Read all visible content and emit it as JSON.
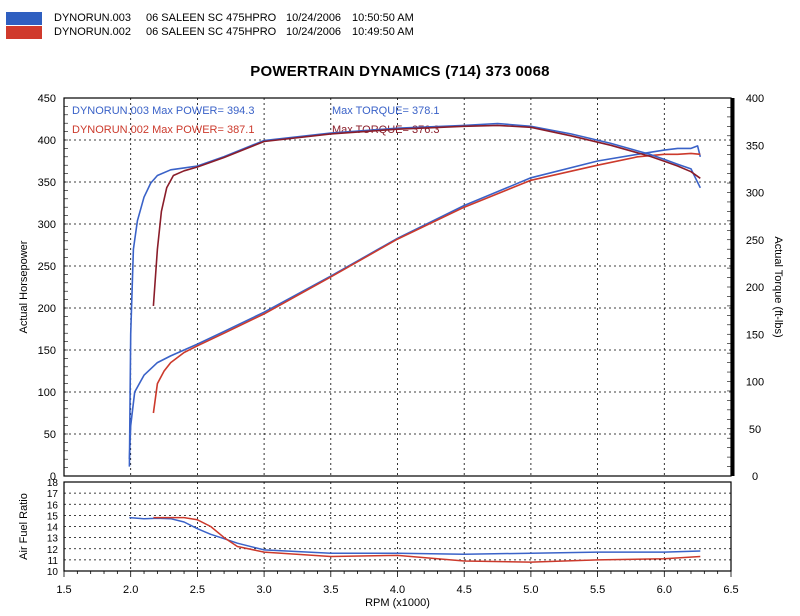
{
  "header": {
    "runs": [
      {
        "run": "DYNORUN.003",
        "vehicle": "06 SALEEN SC 475HPRO",
        "date": "10/24/2006",
        "time": "10:50:50 AM",
        "color": "#2f5fc0"
      },
      {
        "run": "DYNORUN.002",
        "vehicle": "06 SALEEN SC 475HPRO",
        "date": "10/24/2006",
        "time": "10:49:50 AM",
        "color": "#d03a2c"
      }
    ]
  },
  "colors": {
    "run003": "#3a62c8",
    "run002": "#cc3a2c",
    "run002_torque": "#8a1d2a"
  },
  "chart_data": [
    {
      "type": "line",
      "title": "POWERTRAIN DYNAMICS (714) 373 0068",
      "xlabel": "",
      "ylabel": "Actual Horsepower",
      "y2label": "Actual Torque (ft-lbs)",
      "xlim": [
        1.5,
        6.5
      ],
      "ylim": [
        0,
        450
      ],
      "y2lim": [
        0,
        400
      ],
      "grid": true,
      "yticks": [
        "450",
        "400",
        "350",
        "300",
        "250",
        "200",
        "150",
        "100",
        "50",
        "0"
      ],
      "y2ticks": [
        "400",
        "350",
        "300",
        "250",
        "200",
        "150",
        "100",
        "50",
        "0"
      ],
      "annotations": [
        {
          "text": "DYNORUN.003  Max POWER= 394.3",
          "color": "#3a62c8"
        },
        {
          "text": "Max TORQUE= 378.1",
          "color": "#3a62c8"
        },
        {
          "text": "DYNORUN.002  Max POWER= 387.1",
          "color": "#cc3a2c"
        },
        {
          "text": "Max TORQUE= 376.3",
          "color": "#8a1d2a"
        }
      ],
      "series": [
        {
          "axis": "hp",
          "color": "#3a62c8",
          "x": [
            1.99,
            2.0,
            2.03,
            2.1,
            2.2,
            2.3,
            2.4,
            2.5,
            2.7,
            3.0,
            3.5,
            4.0,
            4.5,
            5.0,
            5.5,
            5.8,
            6.0,
            6.1,
            6.2,
            6.25,
            6.27
          ],
          "y": [
            20,
            60,
            100,
            120,
            135,
            143,
            150,
            157,
            172,
            195,
            238,
            283,
            322,
            355,
            375,
            383,
            388,
            390,
            390,
            393,
            380
          ]
        },
        {
          "axis": "hp",
          "color": "#cc3a2c",
          "x": [
            2.17,
            2.2,
            2.25,
            2.3,
            2.4,
            2.5,
            2.7,
            3.0,
            3.5,
            4.0,
            4.5,
            5.0,
            5.5,
            5.8,
            6.0,
            6.1,
            6.2,
            6.27
          ],
          "y": [
            75,
            110,
            125,
            135,
            147,
            155,
            170,
            193,
            237,
            282,
            320,
            352,
            370,
            380,
            383,
            383,
            384,
            383
          ]
        },
        {
          "axis": "tq",
          "color": "#3a62c8",
          "x": [
            1.99,
            2.0,
            2.02,
            2.05,
            2.1,
            2.15,
            2.2,
            2.3,
            2.4,
            2.5,
            2.7,
            3.0,
            3.5,
            4.0,
            4.5,
            4.75,
            5.0,
            5.3,
            5.6,
            5.9,
            6.0,
            6.1,
            6.2,
            6.27
          ],
          "y": [
            10,
            150,
            240,
            270,
            295,
            310,
            318,
            324,
            326,
            328,
            338,
            355,
            363,
            368,
            371,
            373,
            370,
            362,
            352,
            340,
            335,
            330,
            325,
            305
          ]
        },
        {
          "axis": "tq",
          "color": "#8a1d2a",
          "x": [
            2.17,
            2.2,
            2.23,
            2.27,
            2.32,
            2.4,
            2.5,
            2.7,
            3.0,
            3.5,
            4.0,
            4.5,
            4.75,
            5.0,
            5.3,
            5.6,
            5.9,
            6.0,
            6.1,
            6.2,
            6.27
          ],
          "y": [
            180,
            240,
            280,
            305,
            318,
            323,
            327,
            337,
            354,
            362,
            367,
            370,
            371,
            369,
            360,
            350,
            338,
            333,
            328,
            322,
            315
          ]
        }
      ]
    },
    {
      "type": "line",
      "ylabel": "Air Fuel Ratio",
      "xlabel": "RPM (x1000)",
      "xlim": [
        1.5,
        6.5
      ],
      "ylim": [
        10,
        18
      ],
      "grid": true,
      "xticks": [
        "1.5",
        "2.0",
        "2.5",
        "3.0",
        "3.5",
        "4.0",
        "4.5",
        "5.0",
        "5.5",
        "6.0",
        "6.5"
      ],
      "yticks": [
        "18",
        "17",
        "16",
        "15",
        "14",
        "13",
        "12",
        "11",
        "10"
      ],
      "series": [
        {
          "color": "#3a62c8",
          "x": [
            1.99,
            2.1,
            2.2,
            2.3,
            2.4,
            2.5,
            2.6,
            2.7,
            2.8,
            3.0,
            3.5,
            4.0,
            4.5,
            5.0,
            5.5,
            6.0,
            6.27
          ],
          "y": [
            14.8,
            14.7,
            14.75,
            14.7,
            14.4,
            13.8,
            13.3,
            12.9,
            12.5,
            11.9,
            11.6,
            11.6,
            11.5,
            11.6,
            11.7,
            11.7,
            11.8
          ]
        },
        {
          "color": "#cc3a2c",
          "x": [
            2.17,
            2.3,
            2.4,
            2.5,
            2.6,
            2.7,
            2.8,
            3.0,
            3.5,
            4.0,
            4.3,
            4.5,
            5.0,
            5.5,
            6.0,
            6.27
          ],
          "y": [
            14.8,
            14.8,
            14.8,
            14.6,
            14.0,
            13.0,
            12.2,
            11.7,
            11.3,
            11.4,
            11.1,
            10.9,
            10.8,
            11.0,
            11.1,
            11.3
          ]
        }
      ]
    }
  ]
}
